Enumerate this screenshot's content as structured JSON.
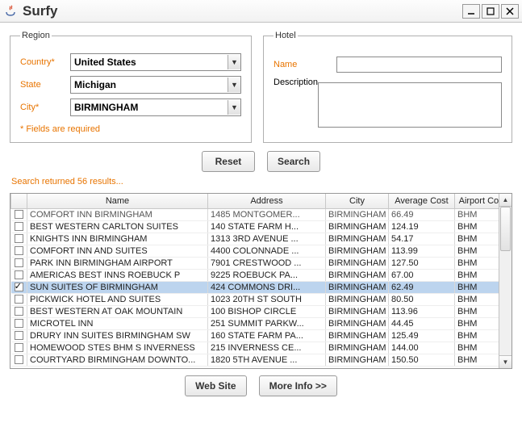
{
  "window": {
    "title": "Surfy"
  },
  "region": {
    "legend": "Region",
    "country_label": "Country*",
    "state_label": "State",
    "city_label": "City*",
    "country_value": "United States",
    "state_value": "Michigan",
    "city_value": "BIRMINGHAM",
    "required_note": "* Fields are required"
  },
  "hotel": {
    "legend": "Hotel",
    "name_label": "Name",
    "description_label": "Description",
    "name_value": "",
    "description_value": ""
  },
  "buttons": {
    "reset": "Reset",
    "search": "Search",
    "website": "Web Site",
    "moreinfo": "More Info >>"
  },
  "status": "Search returned 56 results...",
  "table": {
    "columns": {
      "chk": "",
      "name": "Name",
      "address": "Address",
      "city": "City",
      "avg_cost": "Average Cost",
      "airport": "Airport Code"
    },
    "col_widths": {
      "chk": 20,
      "name": 224,
      "address": 146,
      "city": 78,
      "avg_cost": 82,
      "airport": 72
    },
    "rows": [
      {
        "checked": false,
        "name": "COMFORT INN BIRMINGHAM",
        "address": "1485 MONTGOMER...",
        "city": "BIRMINGHAM",
        "avg_cost": "66.49",
        "airport": "BHM",
        "partial": true
      },
      {
        "checked": false,
        "name": "BEST WESTERN CARLTON SUITES",
        "address": "140 STATE FARM H...",
        "city": "BIRMINGHAM",
        "avg_cost": "124.19",
        "airport": "BHM"
      },
      {
        "checked": false,
        "name": "KNIGHTS INN BIRMINGHAM",
        "address": "1313 3RD AVENUE ...",
        "city": "BIRMINGHAM",
        "avg_cost": "54.17",
        "airport": "BHM"
      },
      {
        "checked": false,
        "name": "COMFORT INN AND SUITES",
        "address": "4400 COLONNADE ...",
        "city": "BIRMINGHAM",
        "avg_cost": "113.99",
        "airport": "BHM"
      },
      {
        "checked": false,
        "name": "PARK INN BIRMINGHAM AIRPORT",
        "address": "7901 CRESTWOOD ...",
        "city": "BIRMINGHAM",
        "avg_cost": "127.50",
        "airport": "BHM"
      },
      {
        "checked": false,
        "name": "AMERICAS BEST INNS ROEBUCK P",
        "address": "9225 ROEBUCK PA...",
        "city": "BIRMINGHAM",
        "avg_cost": "67.00",
        "airport": "BHM"
      },
      {
        "checked": true,
        "name": "SUN SUITES OF BIRMINGHAM",
        "address": "424 COMMONS DRI...",
        "city": "BIRMINGHAM",
        "avg_cost": "62.49",
        "airport": "BHM",
        "selected": true
      },
      {
        "checked": false,
        "name": "PICKWICK HOTEL AND SUITES",
        "address": "1023 20TH ST SOUTH",
        "city": "BIRMINGHAM",
        "avg_cost": "80.50",
        "airport": "BHM"
      },
      {
        "checked": false,
        "name": "BEST WESTERN AT OAK MOUNTAIN",
        "address": "100 BISHOP CIRCLE",
        "city": "BIRMINGHAM",
        "avg_cost": "113.96",
        "airport": "BHM"
      },
      {
        "checked": false,
        "name": "MICROTEL INN",
        "address": "251 SUMMIT PARKW...",
        "city": "BIRMINGHAM",
        "avg_cost": "44.45",
        "airport": "BHM"
      },
      {
        "checked": false,
        "name": "DRURY INN SUITES BIRMINGHAM SW",
        "address": "160 STATE FARM PA...",
        "city": "BIRMINGHAM",
        "avg_cost": "125.49",
        "airport": "BHM"
      },
      {
        "checked": false,
        "name": "HOMEWOOD STES BHM S INVERNESS",
        "address": "215 INVERNESS CE...",
        "city": "BIRMINGHAM",
        "avg_cost": "144.00",
        "airport": "BHM"
      },
      {
        "checked": false,
        "name": "COURTYARD BIRMINGHAM DOWNTO...",
        "address": "1820 5TH AVENUE ...",
        "city": "BIRMINGHAM",
        "avg_cost": "150.50",
        "airport": "BHM"
      }
    ]
  },
  "colors": {
    "accent": "#e87400",
    "selected_row": "#bcd4ee",
    "border": "#999999"
  }
}
